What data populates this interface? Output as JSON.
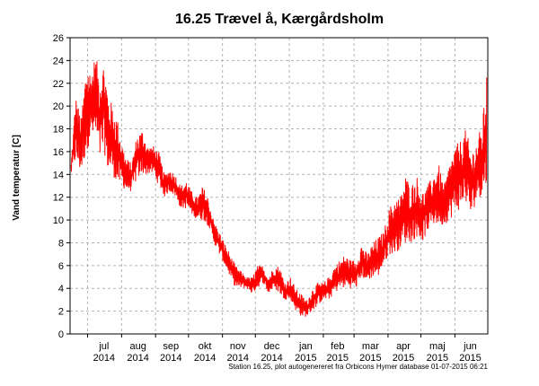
{
  "chart_data": {
    "type": "line",
    "title": "16.25 Trævel å, Kærgårdsholm",
    "ylabel": "Vand temperatur [C]",
    "xlabel": "",
    "ylim": [
      0,
      26
    ],
    "yticks": [
      0,
      2,
      4,
      6,
      8,
      10,
      12,
      14,
      16,
      18,
      20,
      22,
      24,
      26
    ],
    "x_tick_labels": [
      {
        "month": "jul",
        "year": "2014"
      },
      {
        "month": "aug",
        "year": "2014"
      },
      {
        "month": "sep",
        "year": "2014"
      },
      {
        "month": "okt",
        "year": "2014"
      },
      {
        "month": "nov",
        "year": "2014"
      },
      {
        "month": "dec",
        "year": "2014"
      },
      {
        "month": "jan",
        "year": "2015"
      },
      {
        "month": "feb",
        "year": "2015"
      },
      {
        "month": "mar",
        "year": "2015"
      },
      {
        "month": "apr",
        "year": "2015"
      },
      {
        "month": "maj",
        "year": "2015"
      },
      {
        "month": "jun",
        "year": "2015"
      }
    ],
    "grid": true,
    "line_color": "#ff0000",
    "series": [
      {
        "x": [
          "2014-06-16",
          "2014-06-20",
          "2014-06-25",
          "2014-06-30",
          "2014-07-04",
          "2014-07-08",
          "2014-07-12",
          "2014-07-16",
          "2014-07-20",
          "2014-07-24",
          "2014-07-28",
          "2014-08-01",
          "2014-08-05",
          "2014-08-10",
          "2014-08-15",
          "2014-08-20",
          "2014-08-25",
          "2014-08-30",
          "2014-09-04",
          "2014-09-09",
          "2014-09-14",
          "2014-09-19",
          "2014-09-24",
          "2014-09-29",
          "2014-10-04",
          "2014-10-09",
          "2014-10-14",
          "2014-10-19",
          "2014-10-24",
          "2014-10-29",
          "2014-11-03",
          "2014-11-08",
          "2014-11-13",
          "2014-11-18",
          "2014-11-23",
          "2014-11-28",
          "2014-12-03",
          "2014-12-08",
          "2014-12-13",
          "2014-12-18",
          "2014-12-23",
          "2014-12-28",
          "2015-01-02",
          "2015-01-07",
          "2015-01-12",
          "2015-01-17",
          "2015-01-22",
          "2015-01-27",
          "2015-02-01",
          "2015-02-06",
          "2015-02-11",
          "2015-02-16",
          "2015-02-21",
          "2015-02-26",
          "2015-03-03",
          "2015-03-08",
          "2015-03-13",
          "2015-03-18",
          "2015-03-23",
          "2015-03-28",
          "2015-04-02",
          "2015-04-07",
          "2015-04-12",
          "2015-04-17",
          "2015-04-22",
          "2015-04-27",
          "2015-05-02",
          "2015-05-07",
          "2015-05-12",
          "2015-05-17",
          "2015-05-22",
          "2015-05-27",
          "2015-06-01",
          "2015-06-06",
          "2015-06-11",
          "2015-06-16",
          "2015-06-21",
          "2015-06-26",
          "2015-06-30"
        ],
        "y": [
          14,
          19,
          16,
          22,
          20,
          24,
          19,
          22,
          18,
          17,
          16,
          15,
          14,
          13.5,
          16,
          17,
          15,
          15.5,
          15,
          13,
          14,
          13.5,
          12,
          12.5,
          11.5,
          11,
          12,
          11,
          9,
          8,
          7,
          6,
          5,
          4.5,
          4.5,
          4,
          5,
          5.5,
          4,
          5.5,
          5,
          3.5,
          4,
          3,
          2.5,
          2,
          3,
          3.5,
          3.5,
          4,
          4.5,
          5,
          5.5,
          5,
          5,
          6,
          5.5,
          6.5,
          6.5,
          7,
          9,
          10,
          9.5,
          11,
          10.5,
          11.5,
          10,
          11,
          11.5,
          12,
          11,
          12.5,
          13,
          14,
          15,
          13,
          14,
          15,
          16
        ],
        "y_min": [
          14,
          15,
          14,
          16,
          17,
          17,
          15,
          16,
          14,
          14,
          13,
          13,
          12.5,
          12.5,
          13.5,
          14,
          14,
          14,
          13,
          12,
          12.5,
          12,
          11,
          11,
          10.5,
          10,
          10,
          9.5,
          8,
          7,
          6,
          5,
          4,
          4,
          4,
          3.5,
          4,
          4.5,
          3.5,
          4,
          3.5,
          3,
          3,
          2,
          1.5,
          1.5,
          2,
          2.5,
          3,
          3,
          3.5,
          4,
          4,
          4,
          4,
          5,
          4.5,
          5,
          5,
          6,
          7,
          7,
          7.5,
          8,
          8,
          8.5,
          8,
          9,
          9.5,
          9.5,
          9.5,
          10,
          10.5,
          11,
          11.5,
          10,
          12,
          12,
          13
        ],
        "y_max": [
          15,
          21,
          19,
          24,
          23,
          24.5,
          23,
          24,
          21,
          20,
          19,
          17,
          15.5,
          15,
          17.5,
          18,
          16.5,
          16.5,
          16,
          14,
          14.5,
          14,
          13,
          13.5,
          12.5,
          12,
          13,
          12,
          10,
          9,
          8,
          7,
          6,
          5.5,
          5,
          5,
          6,
          6,
          5,
          6,
          6,
          4.5,
          5,
          4,
          3.5,
          3,
          4,
          4.5,
          4.5,
          5,
          6,
          6.5,
          7,
          6.5,
          6.5,
          8,
          7,
          8,
          8.5,
          9,
          11,
          12,
          12,
          14,
          13,
          14,
          12.5,
          13,
          14,
          15,
          13,
          15,
          16.5,
          17,
          18,
          16,
          17,
          18.5,
          22.5
        ]
      }
    ]
  },
  "footer": {
    "text": "Station 16.25, plot autogenereret fra Orbicons Hymer database 01-07-2015 06:21"
  }
}
